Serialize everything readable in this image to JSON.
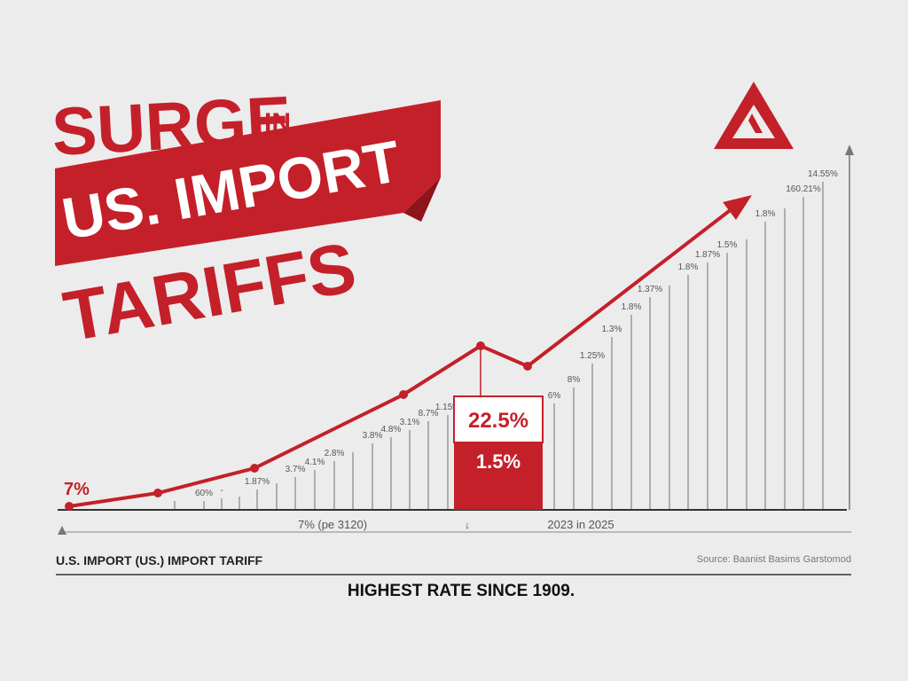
{
  "header": {
    "line1": "SURGE",
    "line1_small": "IN",
    "line2": "US. IMPORT",
    "line3": "TARIFFS"
  },
  "start_label": "7%",
  "callout": {
    "top": "22.5%",
    "bottom": "1.5%"
  },
  "bar_labels": [
    "60%",
    "-",
    "1.87%",
    "3.7%",
    "4.1%",
    "2.8%",
    "3.8%",
    "4.8%",
    "3.1%",
    "8.7%",
    "1.15%",
    "6%",
    "8%",
    "1.25%",
    "1.3%",
    "1.8%",
    "1.37%",
    "1.8%",
    "1.87%",
    "1.5%",
    "1.8%",
    "160.21%",
    "14.55%"
  ],
  "axis": {
    "left": "7% (pe 3120)",
    "right": "2023 in 2025"
  },
  "footer": {
    "label": "U.S. IMPORT (US.) IMPORT TARIFF",
    "source": "Source: Baanist Basims Garstomod",
    "headline": "HIGHEST RATE SINCE 1909."
  }
}
